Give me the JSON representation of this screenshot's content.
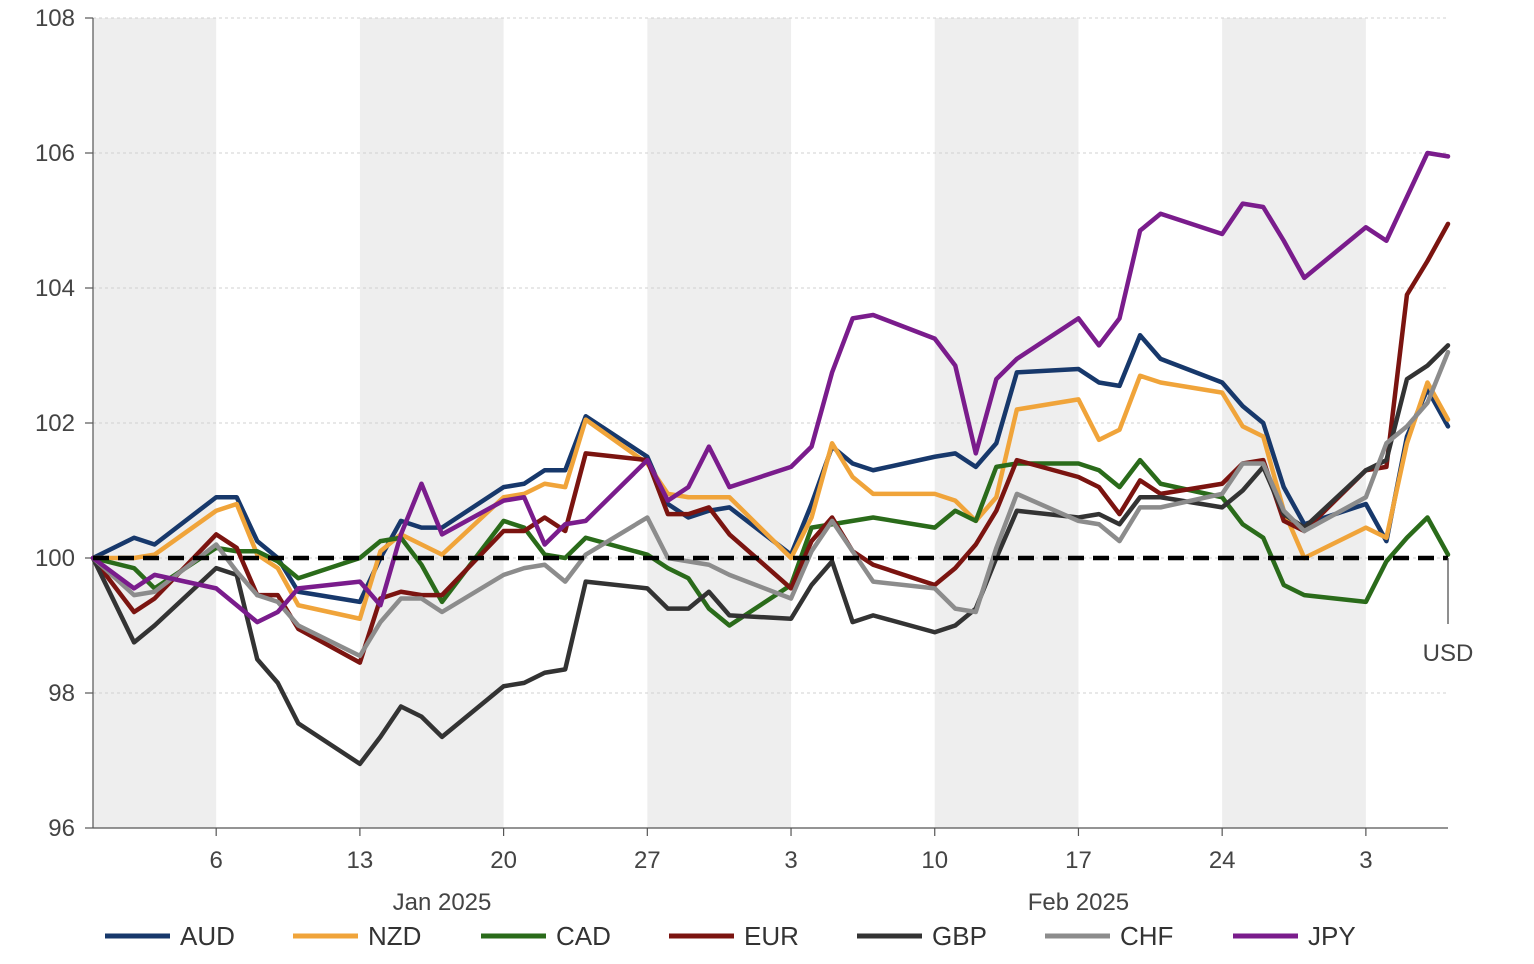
{
  "chart_data": {
    "type": "line",
    "x": [
      "2024-12-31",
      "2025-01-02",
      "2025-01-03",
      "2025-01-06",
      "2025-01-07",
      "2025-01-08",
      "2025-01-09",
      "2025-01-10",
      "2025-01-13",
      "2025-01-14",
      "2025-01-15",
      "2025-01-16",
      "2025-01-17",
      "2025-01-20",
      "2025-01-21",
      "2025-01-22",
      "2025-01-23",
      "2025-01-24",
      "2025-01-27",
      "2025-01-28",
      "2025-01-29",
      "2025-01-30",
      "2025-01-31",
      "2025-02-03",
      "2025-02-04",
      "2025-02-05",
      "2025-02-06",
      "2025-02-07",
      "2025-02-10",
      "2025-02-11",
      "2025-02-12",
      "2025-02-13",
      "2025-02-14",
      "2025-02-17",
      "2025-02-18",
      "2025-02-19",
      "2025-02-20",
      "2025-02-21",
      "2025-02-24",
      "2025-02-25",
      "2025-02-26",
      "2025-02-27",
      "2025-02-28",
      "2025-03-03",
      "2025-03-04",
      "2025-03-05",
      "2025-03-06",
      "2025-03-07"
    ],
    "ylim": [
      96,
      108
    ],
    "yticks": [
      96,
      98,
      100,
      102,
      104,
      106,
      108
    ],
    "ytick_labels": [
      "96",
      "98",
      "100",
      "102",
      "104",
      "106",
      "108"
    ],
    "xticks": [
      {
        "date": "2025-01-06",
        "label": "6"
      },
      {
        "date": "2025-01-13",
        "label": "13"
      },
      {
        "date": "2025-01-20",
        "label": "20"
      },
      {
        "date": "2025-01-27",
        "label": "27"
      },
      {
        "date": "2025-02-03",
        "label": "3"
      },
      {
        "date": "2025-02-10",
        "label": "10"
      },
      {
        "date": "2025-02-17",
        "label": "17"
      },
      {
        "date": "2025-02-24",
        "label": "24"
      },
      {
        "date": "2025-03-03",
        "label": "3"
      }
    ],
    "month_labels": [
      {
        "date": "2025-01-17",
        "label": "Jan 2025"
      },
      {
        "date": "2025-02-17",
        "label": "Feb 2025"
      }
    ],
    "shaded_weeks": [
      [
        "2024-12-31",
        "2025-01-06"
      ],
      [
        "2025-01-13",
        "2025-01-20"
      ],
      [
        "2025-01-27",
        "2025-02-03"
      ],
      [
        "2025-02-10",
        "2025-02-17"
      ],
      [
        "2025-02-24",
        "2025-03-03"
      ]
    ],
    "reference_line": {
      "value": 100,
      "label": "USD",
      "color": "#000000"
    },
    "grid": "horizontal dotted",
    "legend_position": "bottom",
    "series": [
      {
        "name": "AUD",
        "color": "#17386b",
        "values": [
          100,
          100.3,
          100.2,
          100.9,
          100.9,
          100.25,
          100.0,
          99.5,
          99.35,
          100.0,
          100.55,
          100.45,
          100.45,
          101.05,
          101.1,
          101.3,
          101.3,
          102.1,
          101.5,
          100.8,
          100.6,
          100.7,
          100.75,
          100.05,
          100.8,
          101.65,
          101.4,
          101.3,
          101.5,
          101.55,
          101.35,
          101.7,
          102.75,
          102.8,
          102.6,
          102.55,
          103.3,
          102.95,
          102.6,
          102.25,
          102.0,
          101.05,
          100.5,
          100.8,
          100.25,
          101.8,
          102.5,
          101.95
        ]
      },
      {
        "name": "NZD",
        "color": "#f0a43a",
        "values": [
          100,
          100.0,
          100.05,
          100.7,
          100.8,
          100.05,
          99.85,
          99.3,
          99.1,
          100.1,
          100.35,
          100.2,
          100.05,
          100.9,
          100.95,
          101.1,
          101.05,
          102.05,
          101.4,
          100.95,
          100.9,
          100.9,
          100.9,
          100.0,
          100.6,
          101.7,
          101.2,
          100.95,
          100.95,
          100.85,
          100.55,
          100.9,
          102.2,
          102.35,
          101.75,
          101.9,
          102.7,
          102.6,
          102.45,
          101.95,
          101.8,
          100.7,
          100.0,
          100.45,
          100.3,
          101.7,
          102.6,
          102.05
        ]
      },
      {
        "name": "CAD",
        "color": "#2a6b1a",
        "values": [
          100,
          99.85,
          99.55,
          100.15,
          100.1,
          100.1,
          99.95,
          99.7,
          100.0,
          100.25,
          100.3,
          99.9,
          99.35,
          100.55,
          100.45,
          100.05,
          100.0,
          100.3,
          100.05,
          99.85,
          99.7,
          99.25,
          99.0,
          99.6,
          100.45,
          100.5,
          100.55,
          100.6,
          100.45,
          100.7,
          100.55,
          101.35,
          101.4,
          101.4,
          101.3,
          101.05,
          101.45,
          101.1,
          100.9,
          100.5,
          100.3,
          99.6,
          99.45,
          99.35,
          99.95,
          100.3,
          100.6,
          100.05
        ]
      },
      {
        "name": "EUR",
        "color": "#7b1410",
        "values": [
          100,
          99.2,
          99.4,
          100.35,
          100.15,
          99.45,
          99.45,
          98.95,
          98.45,
          99.4,
          99.5,
          99.45,
          99.45,
          100.4,
          100.4,
          100.6,
          100.4,
          101.55,
          101.45,
          100.65,
          100.65,
          100.75,
          100.35,
          99.55,
          100.25,
          100.6,
          100.1,
          99.9,
          99.6,
          99.85,
          100.2,
          100.7,
          101.45,
          101.2,
          101.05,
          100.65,
          101.15,
          100.95,
          101.1,
          101.4,
          101.45,
          100.55,
          100.4,
          101.3,
          101.35,
          103.9,
          104.4,
          104.95
        ]
      },
      {
        "name": "GBP",
        "color": "#333333",
        "values": [
          100,
          98.75,
          99.0,
          99.85,
          99.75,
          98.5,
          98.15,
          97.55,
          96.95,
          97.35,
          97.8,
          97.65,
          97.35,
          98.1,
          98.15,
          98.3,
          98.35,
          99.65,
          99.55,
          99.25,
          99.25,
          99.5,
          99.15,
          99.1,
          99.6,
          99.95,
          99.05,
          99.15,
          98.9,
          99.0,
          99.25,
          100.0,
          100.7,
          100.6,
          100.65,
          100.5,
          100.9,
          100.9,
          100.75,
          101.0,
          101.35,
          100.65,
          100.45,
          101.3,
          101.45,
          102.65,
          102.85,
          103.15
        ]
      },
      {
        "name": "CHF",
        "color": "#8c8c8c",
        "values": [
          100,
          99.45,
          99.5,
          100.2,
          99.8,
          99.45,
          99.35,
          99.0,
          98.55,
          99.05,
          99.4,
          99.4,
          99.2,
          99.75,
          99.85,
          99.9,
          99.65,
          100.05,
          100.6,
          100.0,
          99.95,
          99.9,
          99.75,
          99.4,
          100.1,
          100.55,
          100.1,
          99.65,
          99.55,
          99.25,
          99.2,
          100.15,
          100.95,
          100.55,
          100.5,
          100.25,
          100.75,
          100.75,
          100.95,
          101.4,
          101.4,
          100.7,
          100.4,
          100.9,
          101.7,
          101.95,
          102.3,
          103.05
        ]
      },
      {
        "name": "JPY",
        "color": "#7a1c8c",
        "values": [
          100,
          99.55,
          99.75,
          99.55,
          99.3,
          99.05,
          99.2,
          99.55,
          99.65,
          99.3,
          100.35,
          101.1,
          100.35,
          100.85,
          100.9,
          100.2,
          100.5,
          100.55,
          101.45,
          100.85,
          101.05,
          101.65,
          101.05,
          101.35,
          101.65,
          102.75,
          103.55,
          103.6,
          103.25,
          102.85,
          101.55,
          102.65,
          102.95,
          103.55,
          103.15,
          103.55,
          104.85,
          105.1,
          104.8,
          105.25,
          105.2,
          104.7,
          104.15,
          104.9,
          104.7,
          105.35,
          106.0,
          105.95
        ]
      }
    ]
  }
}
